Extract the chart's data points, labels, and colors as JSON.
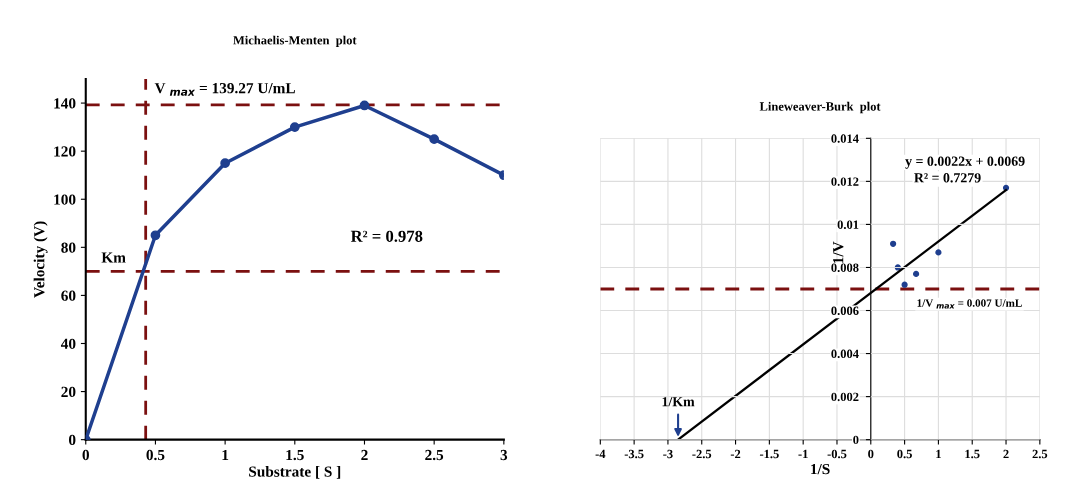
{
  "chart_data": [
    {
      "type": "line",
      "title": "Michaelis-Menten  plot",
      "xlabel": "Substrate [ S ]",
      "ylabel": "Velocity (V)",
      "x": [
        0,
        0.5,
        1,
        1.5,
        2,
        2.5,
        3
      ],
      "series": [
        {
          "color": "#1f3f8f",
          "values": [
            0,
            85,
            115,
            130,
            139,
            125,
            110
          ]
        }
      ],
      "xlim": [
        0,
        3
      ],
      "xticks": [
        0,
        0.5,
        1,
        1.5,
        2,
        2.5,
        3
      ],
      "ylim": [
        0,
        150
      ],
      "yticks": [
        0,
        20,
        40,
        60,
        80,
        100,
        120,
        140
      ],
      "marker": "circle",
      "line_style": "solid",
      "grid": false,
      "ref_lines": [
        {
          "axis": "y",
          "value": 139.27,
          "color": "#7b1010",
          "line_style": "dashed"
        },
        {
          "axis": "y",
          "value": 70,
          "color": "#7b1010",
          "line_style": "dashed"
        },
        {
          "axis": "x",
          "value": 0.43,
          "color": "#7b1010",
          "line_style": "dashed"
        }
      ],
      "annotations": [
        {
          "text": "V $_{max}$ = 139.27 U/mL",
          "x": 1,
          "y": 139.27
        },
        {
          "text": "Km",
          "x": 0.2,
          "y": 70
        },
        "R² = 0.978"
      ]
    },
    {
      "type": "scatter",
      "title": "Lineweaver-Burk  plot",
      "xlabel": "1/S",
      "ylabel": "1/V",
      "series": [
        {
          "type": "scatter",
          "color": "#1f3f8f",
          "marker": "circle",
          "x": [
            0.33,
            0.4,
            0.5,
            0.67,
            1,
            2
          ],
          "values": [
            0.0091,
            0.008,
            0.0072,
            0.0077,
            0.0087,
            0.0117
          ]
        },
        {
          "type": "line",
          "color": "#000000",
          "marker": "none",
          "x": [
            -2.85,
            2
          ],
          "values": [
            0,
            0.0116
          ]
        }
      ],
      "xlim": [
        -4,
        2.5
      ],
      "xticks": [
        -4,
        -3.5,
        -3,
        -2.5,
        -2,
        -1.5,
        -1,
        -0.5,
        0,
        0.5,
        1,
        1.5,
        2,
        2.5
      ],
      "ylim": [
        0,
        0.014
      ],
      "yticks": [
        0,
        0.002,
        0.004,
        0.006,
        0.008,
        0.01,
        0.012,
        0.014
      ],
      "grid": true,
      "ref_lines": [
        {
          "axis": "y",
          "value": 0.007,
          "color": "#7b1010",
          "line_style": "dashed"
        }
      ],
      "annotations": [
        "y = 0.0022x + 0.0069",
        "R² = 0.7279",
        "1/V $_{max}$ = 0.007 U/mL",
        {
          "text": "1/Km",
          "x": -2.85,
          "y": 0
        }
      ]
    }
  ]
}
